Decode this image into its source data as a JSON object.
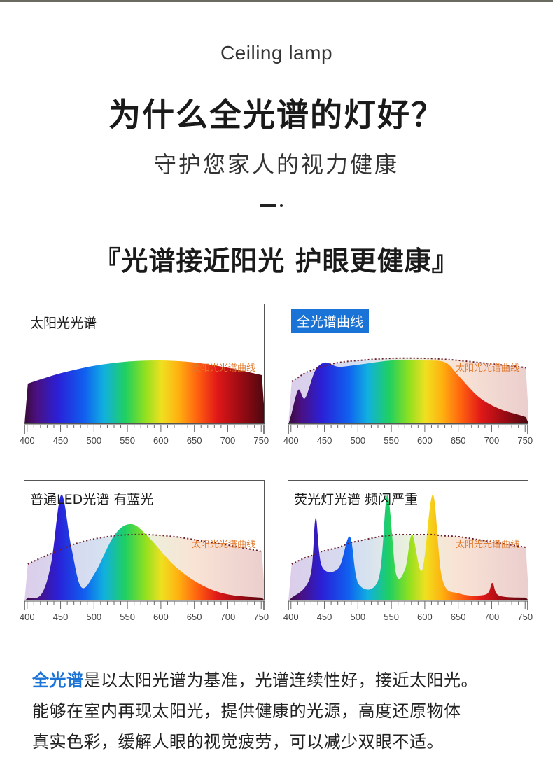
{
  "header": {
    "eyebrow": "Ceiling lamp",
    "title": "为什么全光谱的灯好？",
    "subtitle": "守护您家人的视力健康",
    "headline": "『光谱接近阳光 护眼更健康』"
  },
  "colors": {
    "accent_blue": "#1a73d6",
    "curve_label_orange": "#e0792c",
    "reference_curve": "#6a1e2c"
  },
  "axis_ticks": [
    "400",
    "450",
    "500",
    "550",
    "600",
    "650",
    "700",
    "750"
  ],
  "panels": [
    {
      "id": "sun",
      "label": "太阳光光谱",
      "label_style": "plain",
      "curve_label": "太阳光光谱曲线"
    },
    {
      "id": "full",
      "label": "全光谱曲线",
      "label_style": "badge",
      "curve_label": "太阳光光谱曲线"
    },
    {
      "id": "led",
      "label": "普通LED光谱 有蓝光",
      "label_style": "plain",
      "curve_label": "太阳光光谱曲线"
    },
    {
      "id": "fluor",
      "label": "荧光灯光谱 频闪严重",
      "label_style": "plain",
      "curve_label": "太阳光光谱曲线"
    }
  ],
  "chart_data": [
    {
      "type": "area",
      "title": "太阳光光谱",
      "x": [
        400,
        450,
        500,
        550,
        600,
        650,
        700,
        750
      ],
      "xlim": [
        395,
        755
      ],
      "ylim": [
        0,
        1
      ],
      "series": [
        {
          "name": "太阳光光谱曲线",
          "values": [
            0.38,
            0.48,
            0.55,
            0.59,
            0.6,
            0.58,
            0.53,
            0.46
          ]
        }
      ]
    },
    {
      "type": "area",
      "title": "全光谱曲线",
      "x": [
        400,
        410,
        420,
        435,
        450,
        470,
        500,
        550,
        600,
        630,
        650,
        680,
        710,
        740,
        750
      ],
      "xlim": [
        395,
        755
      ],
      "ylim": [
        0,
        1
      ],
      "series": [
        {
          "name": "全光谱曲线",
          "values": [
            0.1,
            0.32,
            0.24,
            0.5,
            0.58,
            0.54,
            0.56,
            0.6,
            0.6,
            0.58,
            0.45,
            0.25,
            0.14,
            0.08,
            0.06
          ]
        },
        {
          "name": "太阳光光谱曲线",
          "values": [
            0.4,
            0.44,
            0.48,
            0.52,
            0.55,
            0.58,
            0.6,
            0.62,
            0.62,
            0.61,
            0.6,
            0.58,
            0.56,
            0.54,
            0.53
          ]
        }
      ]
    },
    {
      "type": "area",
      "title": "普通LED光谱 有蓝光",
      "x": [
        400,
        420,
        435,
        450,
        465,
        480,
        500,
        530,
        555,
        580,
        620,
        660,
        700,
        750
      ],
      "xlim": [
        395,
        755
      ],
      "ylim": [
        0,
        1
      ],
      "series": [
        {
          "name": "普通LED光谱",
          "values": [
            0.02,
            0.05,
            0.35,
            1.0,
            0.5,
            0.12,
            0.25,
            0.62,
            0.72,
            0.6,
            0.32,
            0.14,
            0.05,
            0.02
          ]
        },
        {
          "name": "太阳光光谱曲线",
          "values": [
            0.34,
            0.4,
            0.44,
            0.48,
            0.52,
            0.55,
            0.58,
            0.61,
            0.62,
            0.62,
            0.6,
            0.56,
            0.52,
            0.46
          ]
        }
      ]
    },
    {
      "type": "area",
      "title": "荧光灯光谱 频闪严重",
      "x": [
        400,
        420,
        430,
        436,
        445,
        470,
        487,
        500,
        530,
        543,
        556,
        570,
        580,
        595,
        611,
        625,
        650,
        690,
        700,
        710,
        750
      ],
      "xlim": [
        395,
        755
      ],
      "ylim": [
        0,
        1
      ],
      "series": [
        {
          "name": "荧光灯光谱",
          "values": [
            0.02,
            0.12,
            0.3,
            0.78,
            0.32,
            0.3,
            0.6,
            0.15,
            0.2,
            1.0,
            0.25,
            0.3,
            0.62,
            0.28,
            1.0,
            0.2,
            0.06,
            0.05,
            0.16,
            0.04,
            0.02
          ]
        },
        {
          "name": "太阳光光谱曲线",
          "values": [
            0.34,
            0.4,
            0.42,
            0.44,
            0.46,
            0.5,
            0.54,
            0.56,
            0.6,
            0.61,
            0.62,
            0.62,
            0.62,
            0.62,
            0.62,
            0.61,
            0.6,
            0.56,
            0.55,
            0.54,
            0.5
          ]
        }
      ]
    }
  ],
  "body": {
    "highlight": "全光谱",
    "line1_rest": "是以太阳光谱为基准，光谱连续性好，接近太阳光。",
    "line2": "能够在室内再现太阳光，提供健康的光源，高度还原物体",
    "line3": "真实色彩，缓解人眼的视觉疲劳，可以减少双眼不适。"
  }
}
